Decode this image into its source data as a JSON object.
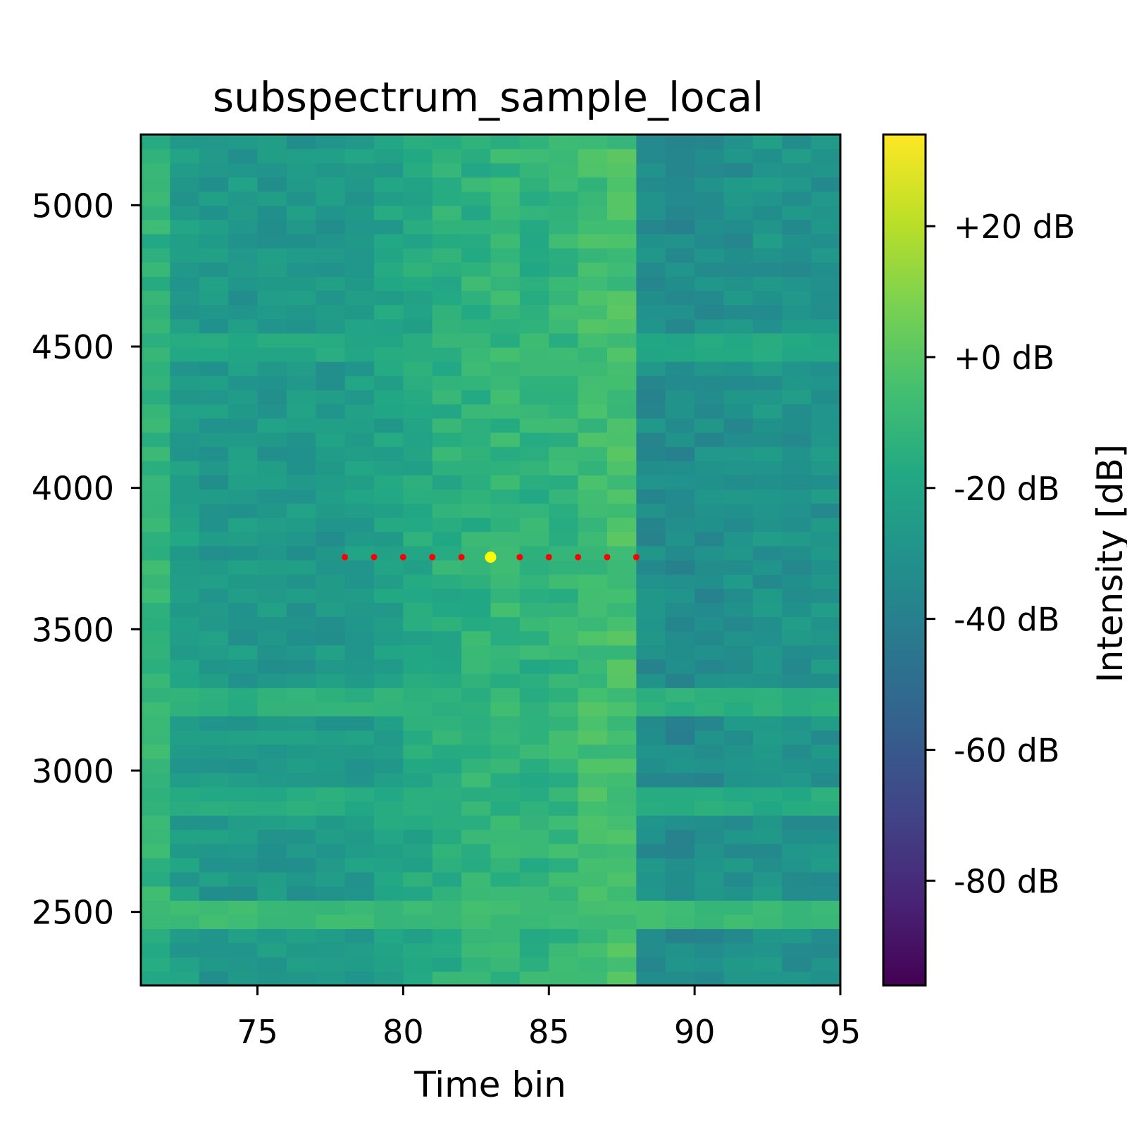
{
  "chart_data": {
    "type": "heatmap",
    "title": "subspectrum_sample_local",
    "xlabel": "Time bin",
    "ylabel": "",
    "xlim": [
      71,
      95
    ],
    "ylim": [
      2240,
      5250
    ],
    "x_ticks": [
      75,
      80,
      85,
      90,
      95
    ],
    "y_ticks": [
      2500,
      3000,
      3500,
      4000,
      4500,
      5000
    ],
    "colorbar": {
      "label": "Intensity [dB]",
      "colormap": "viridis",
      "range": [
        -96,
        34
      ],
      "ticks": [
        20,
        0,
        -20,
        -40,
        -60,
        -80
      ],
      "tick_labels": [
        "+20 dB",
        "+0 dB",
        "-20 dB",
        "-40 dB",
        "-60 dB",
        "-80 dB"
      ]
    },
    "heatmap": {
      "time_bins": [
        71,
        72,
        73,
        74,
        75,
        76,
        77,
        78,
        79,
        80,
        81,
        82,
        83,
        84,
        85,
        86,
        87,
        88,
        89,
        90,
        91,
        92,
        93,
        94
      ],
      "frequency_range": [
        2240,
        5250
      ],
      "band_profile_db": [
        -12,
        -24,
        -27,
        -27,
        -27,
        -27,
        -27,
        -25,
        -22,
        -18,
        -15,
        -13,
        -11,
        -13,
        -11,
        -7,
        -5,
        -33,
        -35,
        -33,
        -31,
        -29,
        -30,
        -30
      ],
      "bright_bands": [
        {
          "frequency": 2480,
          "level_db": -8
        },
        {
          "frequency": 3250,
          "level_db": -14
        },
        {
          "frequency": 2880,
          "level_db": -16
        },
        {
          "frequency": 4490,
          "level_db": -18
        }
      ]
    },
    "markers": {
      "frequency": 3755,
      "sample_points": [
        78,
        79,
        80,
        81,
        82,
        84,
        85,
        86,
        87,
        88
      ],
      "sample_color": "#ff0000",
      "peak": {
        "x": 83,
        "y": 3755,
        "color": "#ffff00"
      }
    },
    "grid": false
  }
}
